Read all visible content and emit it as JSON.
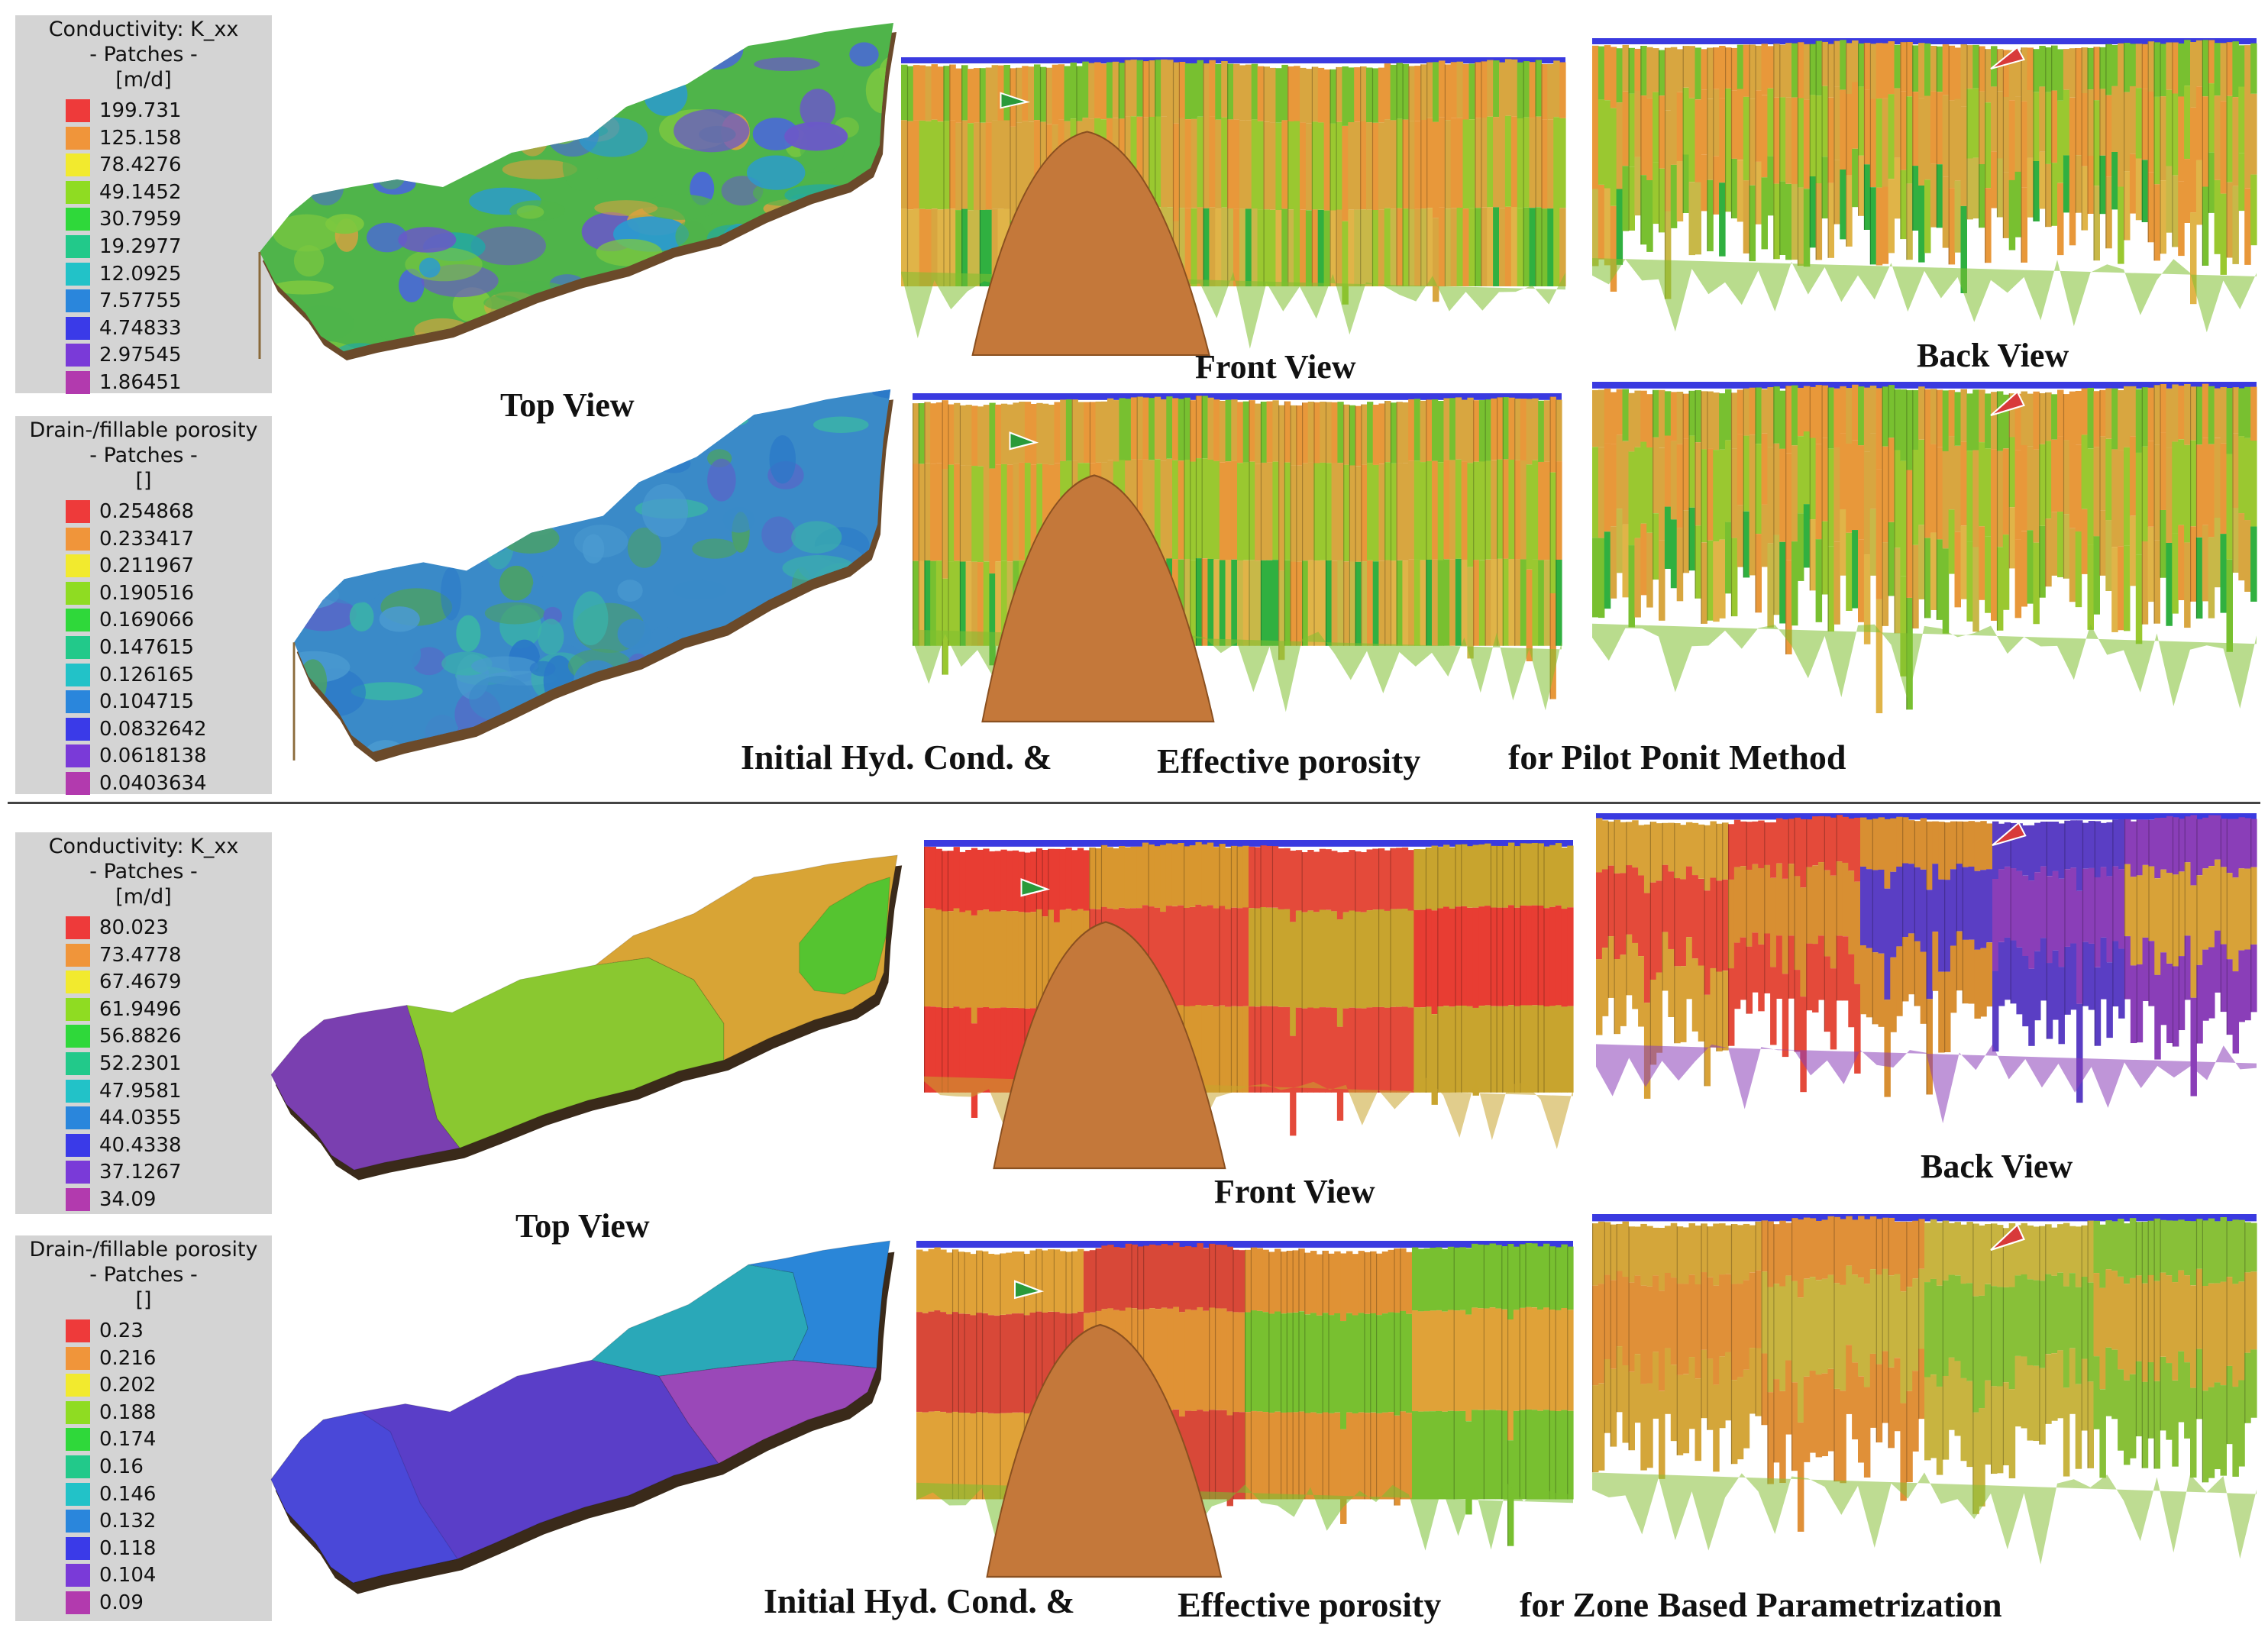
{
  "colors": {
    "palette": [
      "#ee3a3a",
      "#f0953a",
      "#f2ea2e",
      "#8fdc22",
      "#2fd83a",
      "#22c98a",
      "#22c2c8",
      "#2a86dc",
      "#3a3ae8",
      "#7a3ad8",
      "#b23aae"
    ],
    "pilot_map": [
      "#4fb44a",
      "#2b9ad0",
      "#6a58c8",
      "#4a68d8",
      "#e0a040",
      "#7cc840",
      "#20a8a8"
    ],
    "pilot_poro": [
      "#3a8ac8",
      "#2a78c8",
      "#4a9ad0",
      "#3ab4a8",
      "#5a64c8",
      "#4aa06a"
    ],
    "zone_k": [
      "#7a3fb0",
      "#8ac830",
      "#d8a435",
      "#55c430"
    ],
    "zone_poro": [
      "#5a3ec8",
      "#4a48d8",
      "#9a48b8",
      "#2aa8b8",
      "#2a86d8"
    ],
    "pilot_xsec": [
      "#78c030",
      "#d8a640",
      "#e8983a",
      "#9ac830",
      "#30b040",
      "#e0b448",
      "#c8b848"
    ],
    "zone_front_k": [
      "#e83d33",
      "#d8972f",
      "#e44a3a",
      "#c8a42e"
    ],
    "zone_front_p": [
      "#e0a238",
      "#d84838",
      "#e09235",
      "#78c030"
    ],
    "zone_back_k": [
      "#d8a238",
      "#e44a3a",
      "#d88f32",
      "#5a3ec4",
      "#8a3eb8"
    ],
    "zone_back_p": [
      "#d4a63a",
      "#e09038",
      "#c8b440",
      "#88c038"
    ],
    "mound": "#c4783a",
    "rim": "#3a3ae0"
  },
  "sections": [
    {
      "legends": [
        {
          "title": "Conductivity: K_xx",
          "subtitle": "- Patches -",
          "unit": "[m/d]",
          "items": [
            {
              "label": "199.731",
              "color": "#ee3a3a"
            },
            {
              "label": "125.158",
              "color": "#f0953a"
            },
            {
              "label": "78.4276",
              "color": "#f2ea2e"
            },
            {
              "label": "49.1452",
              "color": "#8fdc22"
            },
            {
              "label": "30.7959",
              "color": "#2fd83a"
            },
            {
              "label": "19.2977",
              "color": "#22c98a"
            },
            {
              "label": "12.0925",
              "color": "#22c2c8"
            },
            {
              "label": "7.57755",
              "color": "#2a86dc"
            },
            {
              "label": "4.74833",
              "color": "#3a3ae8"
            },
            {
              "label": "2.97545",
              "color": "#7a3ad8"
            },
            {
              "label": "1.86451",
              "color": "#b23aae"
            }
          ]
        },
        {
          "title": "Drain-/fillable porosity",
          "subtitle": "- Patches -",
          "unit": "[]",
          "items": [
            {
              "label": "0.254868",
              "color": "#ee3a3a"
            },
            {
              "label": "0.233417",
              "color": "#f0953a"
            },
            {
              "label": "0.211967",
              "color": "#f2ea2e"
            },
            {
              "label": "0.190516",
              "color": "#8fdc22"
            },
            {
              "label": "0.169066",
              "color": "#2fd83a"
            },
            {
              "label": "0.147615",
              "color": "#22c98a"
            },
            {
              "label": "0.126165",
              "color": "#22c2c8"
            },
            {
              "label": "0.104715",
              "color": "#2a86dc"
            },
            {
              "label": "0.0832642",
              "color": "#3a3ae8"
            },
            {
              "label": "0.0618138",
              "color": "#7a3ad8"
            },
            {
              "label": "0.0403634",
              "color": "#b23aae"
            }
          ]
        }
      ],
      "labels": {
        "top_view": "Top View",
        "front_view": "Front View",
        "back_view": "Back View"
      },
      "caption": {
        "part1": "Initial Hyd. Cond. &",
        "part2": "Effective porosity",
        "part3": "for Pilot Ponit Method"
      }
    },
    {
      "legends": [
        {
          "title": "Conductivity: K_xx",
          "subtitle": "- Patches -",
          "unit": "[m/d]",
          "items": [
            {
              "label": "80.023",
              "color": "#ee3a3a"
            },
            {
              "label": "73.4778",
              "color": "#f0953a"
            },
            {
              "label": "67.4679",
              "color": "#f2ea2e"
            },
            {
              "label": "61.9496",
              "color": "#8fdc22"
            },
            {
              "label": "56.8826",
              "color": "#2fd83a"
            },
            {
              "label": "52.2301",
              "color": "#22c98a"
            },
            {
              "label": "47.9581",
              "color": "#22c2c8"
            },
            {
              "label": "44.0355",
              "color": "#2a86dc"
            },
            {
              "label": "40.4338",
              "color": "#3a3ae8"
            },
            {
              "label": "37.1267",
              "color": "#7a3ad8"
            },
            {
              "label": "34.09",
              "color": "#b23aae"
            }
          ]
        },
        {
          "title": "Drain-/fillable porosity",
          "subtitle": "- Patches -",
          "unit": "[]",
          "items": [
            {
              "label": "0.23",
              "color": "#ee3a3a"
            },
            {
              "label": "0.216",
              "color": "#f0953a"
            },
            {
              "label": "0.202",
              "color": "#f2ea2e"
            },
            {
              "label": "0.188",
              "color": "#8fdc22"
            },
            {
              "label": "0.174",
              "color": "#2fd83a"
            },
            {
              "label": "0.16",
              "color": "#22c98a"
            },
            {
              "label": "0.146",
              "color": "#22c2c8"
            },
            {
              "label": "0.132",
              "color": "#2a86dc"
            },
            {
              "label": "0.118",
              "color": "#3a3ae8"
            },
            {
              "label": "0.104",
              "color": "#7a3ad8"
            },
            {
              "label": "0.09",
              "color": "#b23aae"
            }
          ]
        }
      ],
      "labels": {
        "top_view": "Top View",
        "front_view": "Front View",
        "back_view": "Back View"
      },
      "caption": {
        "part1": "Initial Hyd. Cond. &",
        "part2": "Effective porosity",
        "part3": "for Zone Based Parametrization"
      }
    }
  ]
}
